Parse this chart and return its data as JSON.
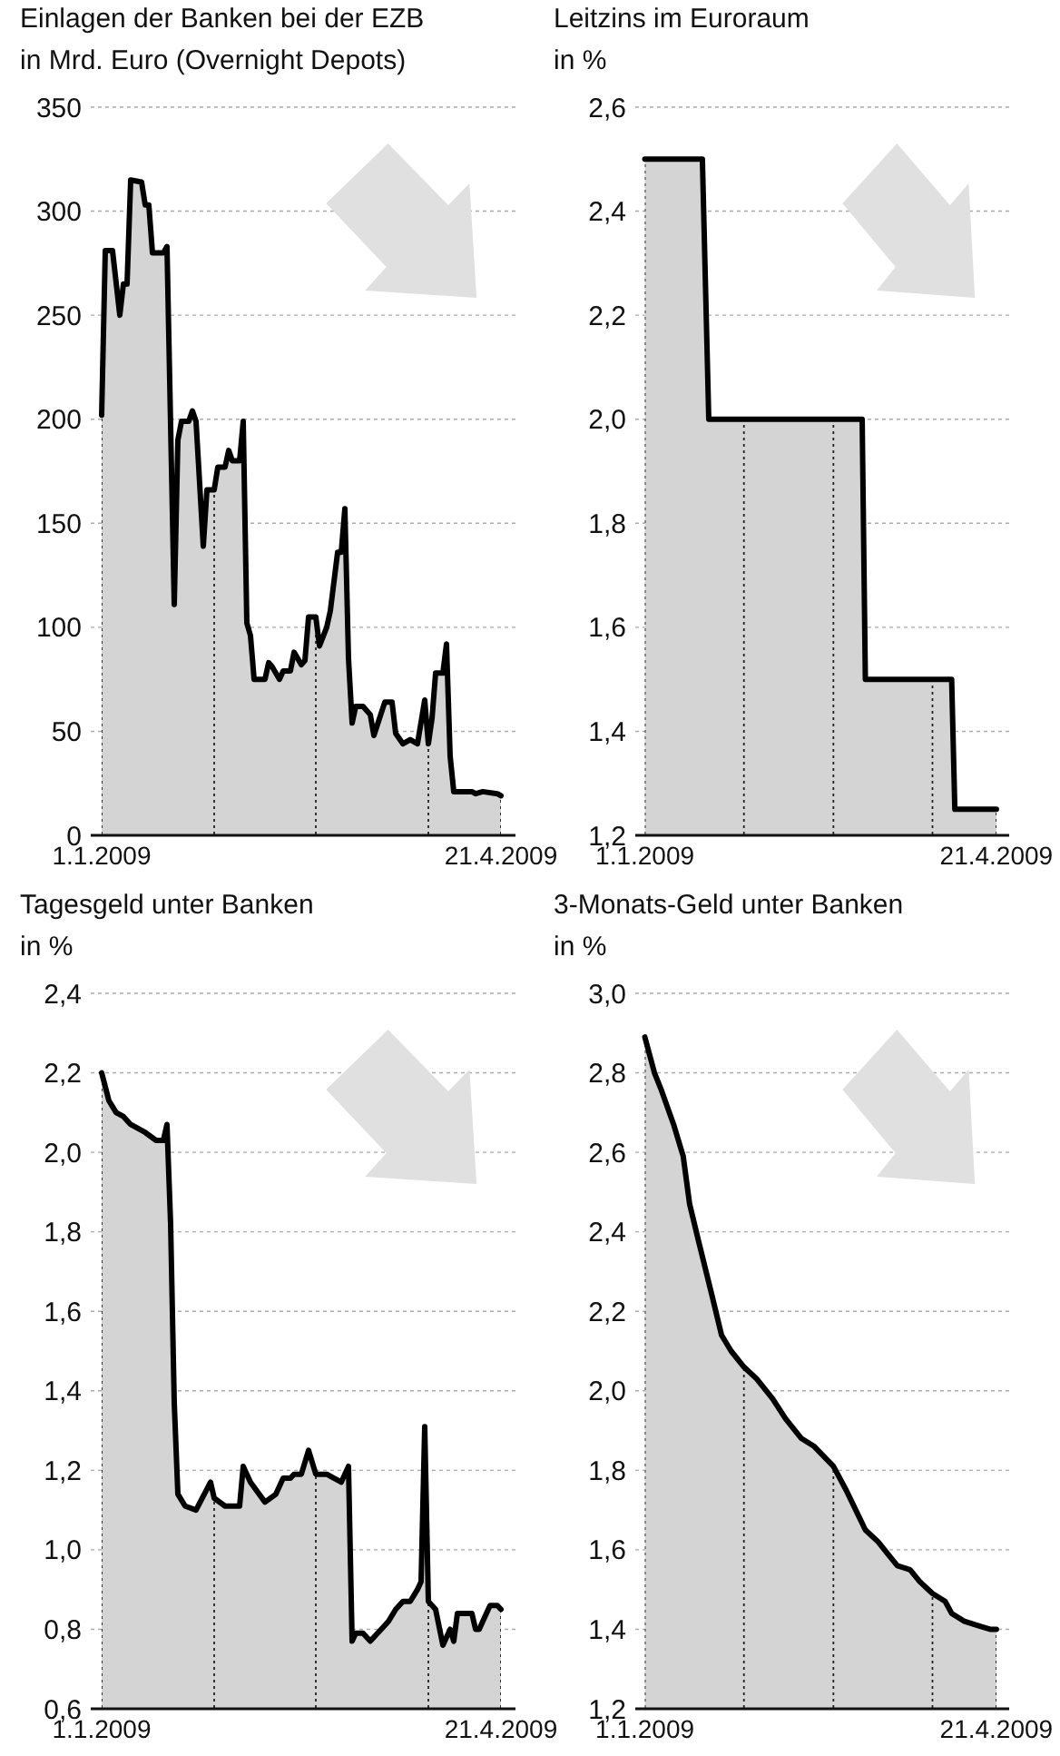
{
  "chart_data": [
    {
      "type": "area",
      "title": "Einlagen der Banken bei der EZB",
      "ylabel": "in Mrd. Euro (Overnight Depots)",
      "grid": "y",
      "xlim": [
        "2008-12-29",
        "2009-04-25"
      ],
      "xticks": [
        {
          "value": "2009-01-01",
          "label": "1.1.2009"
        },
        {
          "value": "2009-04-21",
          "label": "21.4.2009"
        }
      ],
      "ylim": [
        0,
        350
      ],
      "yticks": [
        0,
        50,
        100,
        150,
        200,
        250,
        300,
        350
      ],
      "ref_lines": [
        {
          "axis": "x",
          "value": "2009-01-01",
          "line_style": "dotted"
        },
        {
          "axis": "x",
          "value": "2009-02-01",
          "line_style": "dotted"
        },
        {
          "axis": "x",
          "value": "2009-03-01",
          "line_style": "dotted"
        },
        {
          "axis": "x",
          "value": "2009-04-01",
          "line_style": "dotted"
        },
        {
          "axis": "x",
          "value": "2009-04-21",
          "line_style": "dotted"
        }
      ],
      "series": [
        {
          "color": "#000000",
          "x": [
            "2009-01-01",
            "2009-01-02",
            "2009-01-04",
            "2009-01-06",
            "2009-01-07",
            "2009-01-08",
            "2009-01-09",
            "2009-01-12",
            "2009-01-13",
            "2009-01-14",
            "2009-01-15",
            "2009-01-18",
            "2009-01-19",
            "2009-01-21",
            "2009-01-22",
            "2009-01-23",
            "2009-01-25",
            "2009-01-26",
            "2009-01-27",
            "2009-01-29",
            "2009-01-30",
            "2009-02-01",
            "2009-02-02",
            "2009-02-04",
            "2009-02-05",
            "2009-02-06",
            "2009-02-08",
            "2009-02-09",
            "2009-02-10",
            "2009-02-11",
            "2009-02-12",
            "2009-02-15",
            "2009-02-16",
            "2009-02-17",
            "2009-02-19",
            "2009-02-20",
            "2009-02-22",
            "2009-02-23",
            "2009-02-25",
            "2009-02-26",
            "2009-02-27",
            "2009-03-01",
            "2009-03-02",
            "2009-03-04",
            "2009-03-05",
            "2009-03-07",
            "2009-03-08",
            "2009-03-09",
            "2009-03-10",
            "2009-03-11",
            "2009-03-12",
            "2009-03-14",
            "2009-03-16",
            "2009-03-17",
            "2009-03-20",
            "2009-03-22",
            "2009-03-23",
            "2009-03-25",
            "2009-03-27",
            "2009-03-29",
            "2009-03-31",
            "2009-04-01",
            "2009-04-02",
            "2009-04-03",
            "2009-04-05",
            "2009-04-06",
            "2009-04-07",
            "2009-04-08",
            "2009-04-13",
            "2009-04-14",
            "2009-04-16",
            "2009-04-20",
            "2009-04-21"
          ],
          "values": [
            202,
            281,
            281,
            250,
            265,
            265,
            315,
            314,
            303,
            303,
            280,
            280,
            283,
            111,
            190,
            199,
            199,
            204,
            199,
            139,
            166,
            166,
            177,
            177,
            185,
            180,
            180,
            199,
            102,
            96,
            75,
            75,
            83,
            81,
            75,
            79,
            79,
            88,
            82,
            84,
            105,
            105,
            91,
            100,
            108,
            136,
            136,
            157,
            85,
            54,
            62,
            62,
            58,
            48,
            64,
            64,
            49,
            44,
            46,
            44,
            65,
            44,
            56,
            78,
            78,
            92,
            38,
            21,
            21,
            20,
            21,
            20,
            19
          ]
        }
      ]
    },
    {
      "type": "area",
      "title": "Leitzins im Euroraum",
      "ylabel": "in %",
      "grid": "y",
      "xlim": [
        "2008-12-29",
        "2009-04-25"
      ],
      "xticks": [
        {
          "value": "2009-01-01",
          "label": "1.1.2009"
        },
        {
          "value": "2009-04-21",
          "label": "21.4.2009"
        }
      ],
      "ylim": [
        1.2,
        2.6
      ],
      "yticks": [
        {
          "value": 1.2,
          "label": "1,2"
        },
        {
          "value": 1.4,
          "label": "1,4"
        },
        {
          "value": 1.6,
          "label": "1,6"
        },
        {
          "value": 1.8,
          "label": "1,8"
        },
        {
          "value": 2.0,
          "label": "2,0"
        },
        {
          "value": 2.2,
          "label": "2,2"
        },
        {
          "value": 2.4,
          "label": "2,4"
        },
        {
          "value": 2.6,
          "label": "2,6"
        }
      ],
      "ref_lines": [
        {
          "axis": "x",
          "value": "2009-01-01",
          "line_style": "dotted"
        },
        {
          "axis": "x",
          "value": "2009-02-01",
          "line_style": "dotted"
        },
        {
          "axis": "x",
          "value": "2009-03-01",
          "line_style": "dotted"
        },
        {
          "axis": "x",
          "value": "2009-04-01",
          "line_style": "dotted"
        },
        {
          "axis": "x",
          "value": "2009-04-21",
          "line_style": "dotted"
        }
      ],
      "series": [
        {
          "color": "#000000",
          "x": [
            "2009-01-01",
            "2009-01-19",
            "2009-01-21",
            "2009-03-10",
            "2009-03-11",
            "2009-04-07",
            "2009-04-08",
            "2009-04-21"
          ],
          "values": [
            2.5,
            2.5,
            2.0,
            2.0,
            1.5,
            1.5,
            1.25,
            1.25
          ]
        }
      ]
    },
    {
      "type": "area",
      "title": "Tagesgeld unter Banken",
      "ylabel": "in %",
      "grid": "y",
      "xlim": [
        "2008-12-29",
        "2009-04-25"
      ],
      "xticks": [
        {
          "value": "2009-01-01",
          "label": "1.1.2009"
        },
        {
          "value": "2009-04-21",
          "label": "21.4.2009"
        }
      ],
      "ylim": [
        0.6,
        2.4
      ],
      "yticks": [
        {
          "value": 0.6,
          "label": "0,6"
        },
        {
          "value": 0.8,
          "label": "0,8"
        },
        {
          "value": 1.0,
          "label": "1,0"
        },
        {
          "value": 1.2,
          "label": "1,2"
        },
        {
          "value": 1.4,
          "label": "1,4"
        },
        {
          "value": 1.6,
          "label": "1,6"
        },
        {
          "value": 1.8,
          "label": "1,8"
        },
        {
          "value": 2.0,
          "label": "2,0"
        },
        {
          "value": 2.2,
          "label": "2,2"
        },
        {
          "value": 2.4,
          "label": "2,4"
        }
      ],
      "ref_lines": [
        {
          "axis": "x",
          "value": "2009-01-01",
          "line_style": "dotted"
        },
        {
          "axis": "x",
          "value": "2009-02-01",
          "line_style": "dotted"
        },
        {
          "axis": "x",
          "value": "2009-03-01",
          "line_style": "dotted"
        },
        {
          "axis": "x",
          "value": "2009-04-01",
          "line_style": "dotted"
        },
        {
          "axis": "x",
          "value": "2009-04-21",
          "line_style": "dotted"
        }
      ],
      "series": [
        {
          "color": "#000000",
          "x": [
            "2009-01-01",
            "2009-01-03",
            "2009-01-05",
            "2009-01-07",
            "2009-01-09",
            "2009-01-13",
            "2009-01-16",
            "2009-01-18",
            "2009-01-19",
            "2009-01-20",
            "2009-01-21",
            "2009-01-22",
            "2009-01-24",
            "2009-01-27",
            "2009-01-31",
            "2009-02-01",
            "2009-02-04",
            "2009-02-08",
            "2009-02-09",
            "2009-02-11",
            "2009-02-15",
            "2009-02-18",
            "2009-02-20",
            "2009-02-22",
            "2009-02-23",
            "2009-02-25",
            "2009-02-27",
            "2009-03-01",
            "2009-03-04",
            "2009-03-08",
            "2009-03-10",
            "2009-03-11",
            "2009-03-12",
            "2009-03-14",
            "2009-03-16",
            "2009-03-19",
            "2009-03-21",
            "2009-03-23",
            "2009-03-25",
            "2009-03-27",
            "2009-03-29",
            "2009-03-30",
            "2009-03-31",
            "2009-04-01",
            "2009-04-03",
            "2009-04-05",
            "2009-04-07",
            "2009-04-08",
            "2009-04-09",
            "2009-04-13",
            "2009-04-14",
            "2009-04-15",
            "2009-04-18",
            "2009-04-20",
            "2009-04-21"
          ],
          "values": [
            2.2,
            2.13,
            2.1,
            2.09,
            2.07,
            2.05,
            2.03,
            2.03,
            2.07,
            1.82,
            1.37,
            1.14,
            1.11,
            1.1,
            1.17,
            1.13,
            1.11,
            1.11,
            1.21,
            1.17,
            1.12,
            1.14,
            1.18,
            1.18,
            1.19,
            1.19,
            1.25,
            1.19,
            1.19,
            1.17,
            1.21,
            0.77,
            0.79,
            0.79,
            0.77,
            0.8,
            0.82,
            0.85,
            0.87,
            0.87,
            0.9,
            0.92,
            1.31,
            0.87,
            0.85,
            0.76,
            0.8,
            0.77,
            0.84,
            0.84,
            0.8,
            0.8,
            0.86,
            0.86,
            0.85
          ]
        }
      ]
    },
    {
      "type": "area",
      "title": "3-Monats-Geld unter Banken",
      "ylabel": "in %",
      "grid": "y",
      "xlim": [
        "2008-12-29",
        "2009-04-25"
      ],
      "xticks": [
        {
          "value": "2009-01-01",
          "label": "1.1.2009"
        },
        {
          "value": "2009-04-21",
          "label": "21.4.2009"
        }
      ],
      "ylim": [
        1.2,
        3.0
      ],
      "yticks": [
        {
          "value": 1.2,
          "label": "1,2"
        },
        {
          "value": 1.4,
          "label": "1,4"
        },
        {
          "value": 1.6,
          "label": "1,6"
        },
        {
          "value": 1.8,
          "label": "1,8"
        },
        {
          "value": 2.0,
          "label": "2,0"
        },
        {
          "value": 2.2,
          "label": "2,2"
        },
        {
          "value": 2.4,
          "label": "2,4"
        },
        {
          "value": 2.6,
          "label": "2,6"
        },
        {
          "value": 2.8,
          "label": "2,8"
        },
        {
          "value": 3.0,
          "label": "3,0"
        }
      ],
      "ref_lines": [
        {
          "axis": "x",
          "value": "2009-01-01",
          "line_style": "dotted"
        },
        {
          "axis": "x",
          "value": "2009-02-01",
          "line_style": "dotted"
        },
        {
          "axis": "x",
          "value": "2009-03-01",
          "line_style": "dotted"
        },
        {
          "axis": "x",
          "value": "2009-04-01",
          "line_style": "dotted"
        },
        {
          "axis": "x",
          "value": "2009-04-21",
          "line_style": "dotted"
        }
      ],
      "series": [
        {
          "color": "#000000",
          "x": [
            "2009-01-01",
            "2009-01-04",
            "2009-01-06",
            "2009-01-10",
            "2009-01-13",
            "2009-01-15",
            "2009-01-18",
            "2009-01-22",
            "2009-01-25",
            "2009-01-28",
            "2009-02-01",
            "2009-02-05",
            "2009-02-10",
            "2009-02-14",
            "2009-02-19",
            "2009-02-23",
            "2009-03-01",
            "2009-03-05",
            "2009-03-08",
            "2009-03-11",
            "2009-03-15",
            "2009-03-18",
            "2009-03-21",
            "2009-03-25",
            "2009-03-28",
            "2009-04-01",
            "2009-04-05",
            "2009-04-07",
            "2009-04-11",
            "2009-04-15",
            "2009-04-19",
            "2009-04-21"
          ],
          "values": [
            2.89,
            2.8,
            2.76,
            2.67,
            2.59,
            2.47,
            2.37,
            2.24,
            2.14,
            2.1,
            2.06,
            2.03,
            1.98,
            1.93,
            1.88,
            1.86,
            1.81,
            1.75,
            1.7,
            1.65,
            1.62,
            1.59,
            1.56,
            1.55,
            1.52,
            1.49,
            1.47,
            1.44,
            1.42,
            1.41,
            1.4,
            1.4
          ]
        }
      ]
    }
  ]
}
